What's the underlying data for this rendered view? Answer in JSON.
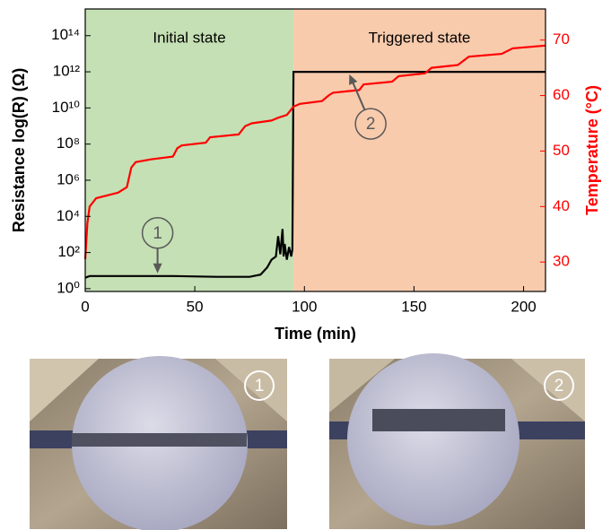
{
  "chart_data": {
    "type": "line",
    "xlabel": "Time (min)",
    "ylabel": "Resistance log(R) (Ω)",
    "y2label": "Temperature (°C)",
    "xlim": [
      0,
      210
    ],
    "xticks": [
      0,
      50,
      100,
      150,
      200
    ],
    "log_y": true,
    "ylim": [
      0.7,
      3000000000000000.0
    ],
    "yticks": [
      {
        "value": 1,
        "label": "10⁰"
      },
      {
        "value": 100,
        "label": "10²"
      },
      {
        "value": 10000,
        "label": "10⁴"
      },
      {
        "value": 1000000,
        "label": "10⁶"
      },
      {
        "value": 100000000,
        "label": "10⁸"
      },
      {
        "value": 10000000000,
        "label": "10¹⁰"
      },
      {
        "value": 1000000000000,
        "label": "10¹²"
      },
      {
        "value": 100000000000000,
        "label": "10¹⁴"
      }
    ],
    "y2lim": [
      24.7,
      75.6
    ],
    "y2ticks": [
      30,
      40,
      50,
      60,
      70
    ],
    "y2color": "#ff0000",
    "regions": [
      {
        "label": "Initial state",
        "from": 0,
        "to": 95,
        "color": "#c5e0b4"
      },
      {
        "label": "Triggered state",
        "from": 95,
        "to": 210,
        "color": "#f8cbad"
      }
    ],
    "series": [
      {
        "color": "#000000",
        "x": [
          0,
          2,
          20,
          40,
          60,
          75,
          80,
          83,
          85,
          87,
          88,
          89,
          90,
          90.5,
          91,
          92,
          93,
          94,
          94.5,
          95,
          95.5,
          210
        ],
        "values": [
          4,
          5,
          5,
          5,
          4.5,
          4.5,
          6,
          15,
          40,
          60,
          800,
          80,
          2000,
          60,
          300,
          40,
          200,
          60,
          150,
          1000000000000,
          1000000000000,
          1000000000000
        ]
      },
      {
        "color": "#ff0000",
        "axis": "y2",
        "x": [
          0,
          1,
          2,
          5,
          15,
          19,
          21,
          23,
          30,
          40,
          42,
          44,
          55,
          57,
          70,
          73,
          76,
          85,
          88,
          92,
          95,
          98,
          108,
          111,
          113,
          125,
          127,
          140,
          143,
          155,
          158,
          170,
          175,
          190,
          195,
          210
        ],
        "values": [
          30.5,
          37,
          40,
          41.5,
          42.5,
          43.5,
          47,
          48,
          48.5,
          49,
          50.5,
          51,
          51.5,
          52.5,
          53,
          54.5,
          55,
          55.5,
          56,
          56.5,
          58,
          58.5,
          59,
          60,
          60.5,
          61,
          62,
          62.5,
          63.5,
          64,
          65,
          65.5,
          67,
          67.5,
          68.5,
          69
        ]
      }
    ],
    "annotations": [
      {
        "text": "1",
        "x": 33,
        "y": 5
      },
      {
        "text": "2",
        "x": 120,
        "y": 1000000000000
      }
    ]
  },
  "photos": [
    {
      "label": "1"
    },
    {
      "label": "2"
    }
  ]
}
